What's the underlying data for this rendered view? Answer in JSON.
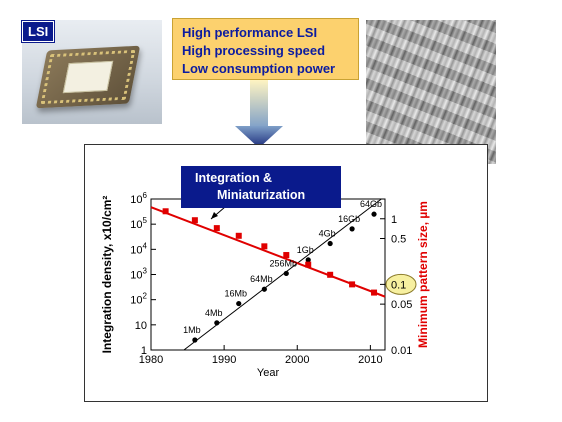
{
  "lsi_label": "LSI",
  "features": [
    "High performance LSI",
    "High processing speed",
    "Low consumption power"
  ],
  "annotation": {
    "line1": "Integration &",
    "line2": "Miniaturization"
  },
  "colors": {
    "annotation_bg": "#0a1a8c",
    "feature_bg": "#fcd16e",
    "feature_text": "#0c1ca0",
    "size_series": "#e00000",
    "density_series": "#000000",
    "highlight": "#f7f0a0"
  },
  "chart_data": {
    "type": "line",
    "xlabel": "Year",
    "ylabel_left": "Integration density, x10/cm²",
    "ylabel_right": "Minimum pattern size, µm",
    "xlim": [
      1980,
      2012
    ],
    "x_ticks": [
      "1980",
      "1990",
      "2000",
      "2010"
    ],
    "left_axis": {
      "scale": "log",
      "range": [
        1,
        1000000
      ],
      "ticks": [
        {
          "base": "1",
          "exp": ""
        },
        {
          "base": "10",
          "exp": ""
        },
        {
          "base": "10",
          "exp": "2"
        },
        {
          "base": "10",
          "exp": "3"
        },
        {
          "base": "10",
          "exp": "4"
        },
        {
          "base": "10",
          "exp": "5"
        },
        {
          "base": "10",
          "exp": "6"
        }
      ]
    },
    "right_axis": {
      "scale": "log",
      "range": [
        0.01,
        2
      ],
      "ticks": [
        "1",
        "0.5",
        "0.1",
        "0.05",
        "0.01"
      ],
      "tick_values": [
        1,
        0.5,
        0.1,
        0.05,
        0.01
      ],
      "highlight_tick": "0.1"
    },
    "series": [
      {
        "name": "Integration density",
        "axis": "left",
        "color": "#000000",
        "x": [
          1986,
          1989,
          1992,
          1995.5,
          1998.5,
          2001.5,
          2004.5,
          2007.5,
          2010.5
        ],
        "y": [
          2.5,
          12,
          70,
          260,
          1100,
          3800,
          17000,
          65000,
          250000
        ],
        "labels": [
          "1Mb",
          "4Mb",
          "16Mb",
          "64Mb",
          "256Mb",
          "1Gb",
          "4Gb",
          "16Gb",
          "64Gb"
        ]
      },
      {
        "name": "Minimum pattern size",
        "axis": "right",
        "color": "#e00000",
        "x": [
          1982,
          1986,
          1989,
          1992,
          1995.5,
          1998.5,
          2001.5,
          2004.5,
          2007.5,
          2010.5
        ],
        "y": [
          1.3,
          0.95,
          0.72,
          0.55,
          0.38,
          0.28,
          0.2,
          0.14,
          0.1,
          0.075
        ],
        "labels": []
      }
    ],
    "trend_lines": [
      {
        "axis": "left",
        "from": [
          1984.5,
          1
        ],
        "to": [
          2011.5,
          1000000
        ]
      },
      {
        "axis": "right",
        "from": [
          1980,
          1.5
        ],
        "to": [
          2012,
          0.065
        ]
      }
    ]
  }
}
